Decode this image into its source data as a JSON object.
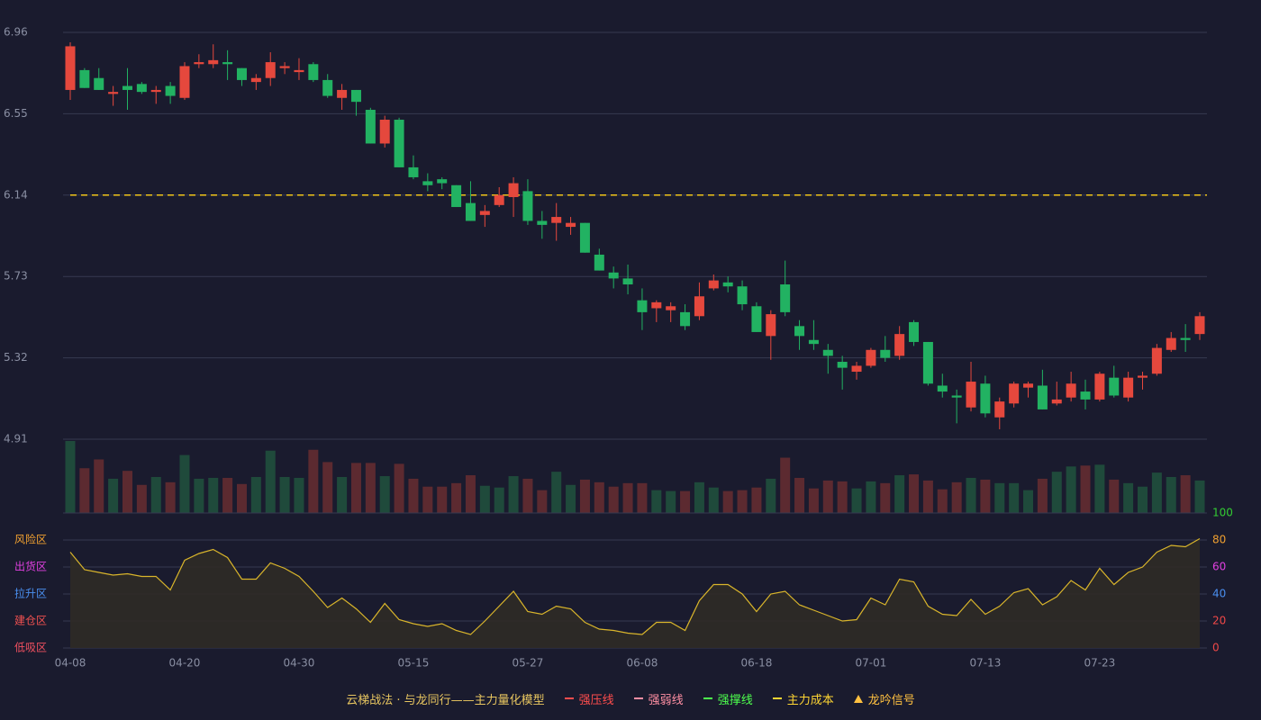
{
  "chart_data": {
    "type": "candlestick",
    "categories": [
      "04-08",
      null,
      null,
      null,
      null,
      null,
      null,
      null,
      "04-20",
      null,
      null,
      null,
      null,
      null,
      null,
      null,
      "04-30",
      null,
      null,
      null,
      null,
      null,
      null,
      null,
      "05-15",
      null,
      null,
      null,
      null,
      null,
      null,
      null,
      "05-27",
      null,
      null,
      null,
      null,
      null,
      null,
      null,
      "06-08",
      null,
      null,
      null,
      null,
      null,
      null,
      null,
      "06-18",
      null,
      null,
      null,
      null,
      null,
      null,
      null,
      "07-01",
      null,
      null,
      null,
      null,
      null,
      null,
      null,
      "07-13",
      null,
      null,
      null,
      null,
      null,
      null,
      null,
      "07-23",
      null,
      null,
      null,
      null,
      null,
      null,
      null
    ],
    "open": [
      6.67,
      6.77,
      6.73,
      6.65,
      6.69,
      6.7,
      6.66,
      6.69,
      6.63,
      6.8,
      6.8,
      6.81,
      6.78,
      6.71,
      6.73,
      6.78,
      6.76,
      6.8,
      6.72,
      6.63,
      6.67,
      6.57,
      6.4,
      6.52,
      6.28,
      6.21,
      6.22,
      6.19,
      6.1,
      6.04,
      6.09,
      6.13,
      6.16,
      6.01,
      6.0,
      5.98,
      6.0,
      5.84,
      5.75,
      5.72,
      5.61,
      5.57,
      5.56,
      5.55,
      5.53,
      5.67,
      5.7,
      5.68,
      5.58,
      5.43,
      5.69,
      5.48,
      5.41,
      5.36,
      5.3,
      5.25,
      5.28,
      5.36,
      5.33,
      5.5,
      5.4,
      5.18,
      5.13,
      5.07,
      5.19,
      5.02,
      5.09,
      5.17,
      5.18,
      5.09,
      5.12,
      5.15,
      5.11,
      5.22,
      5.12,
      5.22,
      5.24,
      5.36,
      5.42,
      5.44
    ],
    "close": [
      6.89,
      6.68,
      6.67,
      6.66,
      6.67,
      6.66,
      6.67,
      6.64,
      6.79,
      6.81,
      6.82,
      6.8,
      6.72,
      6.73,
      6.81,
      6.79,
      6.77,
      6.72,
      6.64,
      6.67,
      6.61,
      6.4,
      6.52,
      6.28,
      6.23,
      6.19,
      6.2,
      6.08,
      6.01,
      6.06,
      6.14,
      6.2,
      6.01,
      5.99,
      6.03,
      6.0,
      5.85,
      5.76,
      5.72,
      5.69,
      5.55,
      5.6,
      5.58,
      5.48,
      5.63,
      5.71,
      5.68,
      5.59,
      5.45,
      5.54,
      5.55,
      5.43,
      5.39,
      5.33,
      5.27,
      5.28,
      5.36,
      5.32,
      5.44,
      5.4,
      5.19,
      5.15,
      5.12,
      5.2,
      5.04,
      5.1,
      5.19,
      5.19,
      5.06,
      5.11,
      5.19,
      5.11,
      5.24,
      5.13,
      5.22,
      5.23,
      5.37,
      5.42,
      5.41,
      5.53
    ],
    "high": [
      6.91,
      6.78,
      6.78,
      6.69,
      6.78,
      6.71,
      6.69,
      6.71,
      6.81,
      6.85,
      6.9,
      6.87,
      6.78,
      6.75,
      6.86,
      6.81,
      6.83,
      6.81,
      6.75,
      6.7,
      6.67,
      6.58,
      6.54,
      6.53,
      6.34,
      6.25,
      6.23,
      6.19,
      6.21,
      6.09,
      6.18,
      6.23,
      6.22,
      6.06,
      6.1,
      6.03,
      6.0,
      5.87,
      5.78,
      5.79,
      5.67,
      5.61,
      5.6,
      5.59,
      5.7,
      5.74,
      5.73,
      5.71,
      5.6,
      5.56,
      5.81,
      5.51,
      5.51,
      5.39,
      5.33,
      5.3,
      5.37,
      5.43,
      5.48,
      5.51,
      5.4,
      5.24,
      5.16,
      5.3,
      5.23,
      5.12,
      5.2,
      5.2,
      5.26,
      5.2,
      5.25,
      5.21,
      5.25,
      5.28,
      5.25,
      5.25,
      5.39,
      5.45,
      5.49,
      5.55
    ],
    "low": [
      6.62,
      6.68,
      6.67,
      6.59,
      6.57,
      6.65,
      6.6,
      6.6,
      6.62,
      6.78,
      6.78,
      6.72,
      6.69,
      6.67,
      6.69,
      6.75,
      6.72,
      6.71,
      6.63,
      6.57,
      6.54,
      6.4,
      6.38,
      6.28,
      6.22,
      6.16,
      6.17,
      6.08,
      6.01,
      5.98,
      6.08,
      6.03,
      5.99,
      5.92,
      5.91,
      5.94,
      5.85,
      5.76,
      5.67,
      5.64,
      5.46,
      5.5,
      5.5,
      5.46,
      5.51,
      5.66,
      5.65,
      5.56,
      5.45,
      5.31,
      5.53,
      5.36,
      5.36,
      5.24,
      5.16,
      5.21,
      5.27,
      5.3,
      5.31,
      5.38,
      5.18,
      5.12,
      4.99,
      5.05,
      5.02,
      4.96,
      5.07,
      5.12,
      5.06,
      5.08,
      5.1,
      5.06,
      5.1,
      5.12,
      5.1,
      5.16,
      5.23,
      5.35,
      5.35,
      5.41
    ],
    "volume": [
      82,
      51,
      61,
      39,
      48,
      32,
      41,
      35,
      66,
      39,
      40,
      40,
      33,
      41,
      71,
      41,
      40,
      72,
      58,
      41,
      57,
      57,
      42,
      56,
      39,
      30,
      30,
      34,
      43,
      31,
      29,
      42,
      39,
      26,
      47,
      32,
      38,
      35,
      30,
      34,
      34,
      26,
      25,
      25,
      35,
      29,
      25,
      26,
      29,
      39,
      63,
      40,
      28,
      37,
      36,
      28,
      36,
      34,
      43,
      44,
      37,
      27,
      35,
      40,
      38,
      34,
      34,
      26,
      39,
      47,
      53,
      54,
      55,
      38,
      34,
      30,
      46,
      41,
      43,
      37
    ],
    "up_color": "#e5483d",
    "down_color": "#22b262",
    "volume_colors": {
      "up": "#1f4a3b",
      "down": "#5c2a30"
    },
    "ylim": [
      4.91,
      6.96
    ],
    "yticks": [
      4.91,
      5.32,
      5.73,
      6.14,
      6.55,
      6.96
    ],
    "grid": true,
    "cost_line": {
      "value": 6.14,
      "color": "#f0c419"
    },
    "indicator": {
      "values": [
        71,
        58,
        56,
        54,
        55,
        53,
        53,
        43,
        65,
        70,
        73,
        67,
        51,
        51,
        63,
        59,
        53,
        42,
        30,
        37,
        29,
        19,
        33,
        21,
        18,
        16,
        18,
        13,
        10,
        20,
        31,
        42,
        27,
        25,
        31,
        29,
        19,
        14,
        13,
        11,
        10,
        19,
        19,
        13,
        35,
        47,
        47,
        40,
        27,
        40,
        42,
        32,
        28,
        24,
        20,
        21,
        37,
        32,
        51,
        49,
        31,
        25,
        24,
        36,
        25,
        31,
        41,
        44,
        32,
        38,
        50,
        43,
        59,
        47,
        56,
        60,
        71,
        76,
        75,
        81
      ],
      "ylim": [
        0,
        100
      ],
      "yticks": [
        0,
        20,
        40,
        60,
        80,
        100
      ],
      "ytick_colors": [
        "#f04848",
        "#f04848",
        "#4a8ff0",
        "#e040e0",
        "#f0a030",
        "#33cc33"
      ],
      "color": "#d9b52b",
      "fill": "#2f2b26",
      "zones": [
        {
          "label": "风险区",
          "value": 80,
          "color": "#f0a030"
        },
        {
          "label": "出货区",
          "value": 60,
          "color": "#e040e0"
        },
        {
          "label": "拉升区",
          "value": 40,
          "color": "#4a8ff0"
        },
        {
          "label": "建仓区",
          "value": 20,
          "color": "#f05050"
        },
        {
          "label": "低吸区",
          "value": 0,
          "color": "#f05060"
        }
      ]
    },
    "legend": {
      "title": "云梯战法 · 与龙同行——主力量化模型",
      "title_color": "#e8c660",
      "items": [
        {
          "name": "强压线",
          "color": "#ff4d4d",
          "style": "solid"
        },
        {
          "name": "强弱线",
          "color": "#ff8fa3",
          "style": "dashed"
        },
        {
          "name": "强撑线",
          "color": "#4dff4d",
          "style": "solid"
        },
        {
          "name": "主力成本",
          "color": "#ffd633",
          "style": "dashed"
        },
        {
          "name": "龙吟信号",
          "color": "#ffc040",
          "style": "triangle"
        }
      ]
    }
  }
}
